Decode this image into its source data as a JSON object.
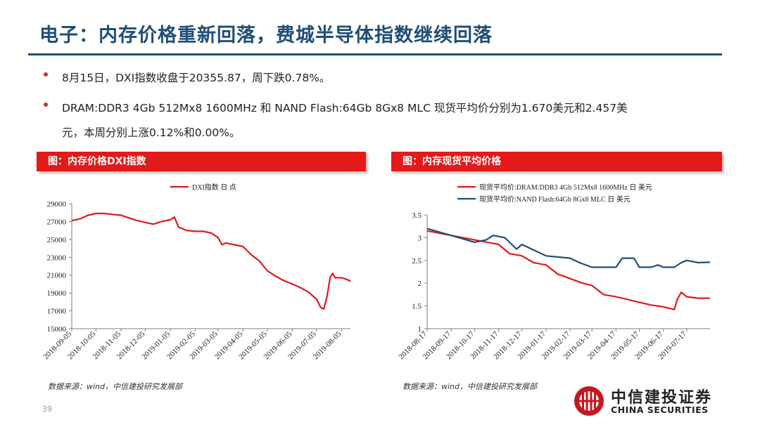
{
  "title": "电子：内存价格重新回落，费城半导体指数继续回落",
  "bullets": [
    "8月15日，DXI指数收盘于20355.87，周下跌0.78%。",
    "DRAM:DDR3 4Gb 512Mx8 1600MHz 和 NAND Flash:64Gb 8Gx8 MLC 现货平均价分别为1.670美元和2.457美"
  ],
  "bullet_continuation": "元，本周分别上涨0.12%和0.00%。",
  "page_number": "39",
  "logo": {
    "cn": "中信建投证券",
    "en": "CHINA SECURITIES"
  },
  "colors": {
    "title": "#1f4e79",
    "banner": "#e21a1a",
    "red_series": "#e21a1a",
    "blue_series": "#1f4e79"
  },
  "chart_data": [
    {
      "type": "line",
      "banner": "图：内存价格DXI指数",
      "source": "数据来源：wind，中信建投研究发展部",
      "ylim": [
        15000,
        29000
      ],
      "yticks": [
        "29000",
        "27000",
        "25000",
        "23000",
        "21000",
        "19000",
        "17000",
        "15000"
      ],
      "xticks": [
        "2018-09-05",
        "2018-10-05",
        "2018-11-05",
        "2018-12-05",
        "2019-01-05",
        "2019-02-05",
        "2019-03-05",
        "2019-04-05",
        "2019-05-05",
        "2019-06-05",
        "2019-07-05",
        "2019-08-05"
      ],
      "x_range": [
        "2018-09-05",
        "2019-08-16"
      ],
      "series": [
        {
          "name": "DXI指数 日 点",
          "color": "#e21a1a",
          "points": [
            [
              "2018-09-05",
              27100
            ],
            [
              "2018-09-15",
              27300
            ],
            [
              "2018-09-25",
              27700
            ],
            [
              "2018-10-05",
              27900
            ],
            [
              "2018-10-15",
              27900
            ],
            [
              "2018-10-25",
              27800
            ],
            [
              "2018-11-05",
              27700
            ],
            [
              "2018-11-15",
              27400
            ],
            [
              "2018-11-25",
              27100
            ],
            [
              "2018-12-05",
              26900
            ],
            [
              "2018-12-15",
              26700
            ],
            [
              "2018-12-25",
              27000
            ],
            [
              "2019-01-05",
              27200
            ],
            [
              "2019-01-10",
              27500
            ],
            [
              "2019-01-15",
              26400
            ],
            [
              "2019-01-25",
              26000
            ],
            [
              "2019-02-05",
              25900
            ],
            [
              "2019-02-15",
              25900
            ],
            [
              "2019-02-25",
              25700
            ],
            [
              "2019-03-05",
              25200
            ],
            [
              "2019-03-10",
              24400
            ],
            [
              "2019-03-15",
              24600
            ],
            [
              "2019-03-25",
              24400
            ],
            [
              "2019-04-05",
              24200
            ],
            [
              "2019-04-15",
              23300
            ],
            [
              "2019-04-25",
              22600
            ],
            [
              "2019-05-05",
              21500
            ],
            [
              "2019-05-15",
              20900
            ],
            [
              "2019-05-25",
              20400
            ],
            [
              "2019-06-05",
              20000
            ],
            [
              "2019-06-15",
              19600
            ],
            [
              "2019-06-25",
              19100
            ],
            [
              "2019-07-05",
              18300
            ],
            [
              "2019-07-10",
              17400
            ],
            [
              "2019-07-14",
              17200
            ],
            [
              "2019-07-18",
              18600
            ],
            [
              "2019-07-22",
              20800
            ],
            [
              "2019-07-25",
              21200
            ],
            [
              "2019-07-28",
              20700
            ],
            [
              "2019-08-05",
              20700
            ],
            [
              "2019-08-12",
              20500
            ],
            [
              "2019-08-16",
              20300
            ]
          ]
        }
      ]
    },
    {
      "type": "line",
      "banner": "图：内存现货平均价格",
      "source": "数据来源：wind，中信建投研究发展部",
      "ylim": [
        1,
        3.5
      ],
      "yticks": [
        "3.5",
        "3",
        "2.5",
        "2",
        "1.5",
        "1"
      ],
      "xticks": [
        "2018-08-17",
        "2018-09-17",
        "2018-10-17",
        "2018-11-17",
        "2018-12-17",
        "2019-01-17",
        "2019-02-17",
        "2019-03-17",
        "2019-04-17",
        "2019-05-17",
        "2019-06-17",
        "2019-07-17"
      ],
      "x_range": [
        "2018-08-17",
        "2019-08-16"
      ],
      "series": [
        {
          "name": "现货平均价:DRAM:DDR3 4Gb 512Mx8 1600MHz 日 美元",
          "color": "#e21a1a",
          "points": [
            [
              "2018-08-17",
              3.15
            ],
            [
              "2018-09-17",
              3.05
            ],
            [
              "2018-10-17",
              2.95
            ],
            [
              "2018-11-17",
              2.85
            ],
            [
              "2018-12-01",
              2.65
            ],
            [
              "2018-12-17",
              2.6
            ],
            [
              "2019-01-01",
              2.45
            ],
            [
              "2019-01-17",
              2.4
            ],
            [
              "2019-02-01",
              2.2
            ],
            [
              "2019-02-17",
              2.1
            ],
            [
              "2019-03-05",
              2.0
            ],
            [
              "2019-03-17",
              1.95
            ],
            [
              "2019-04-01",
              1.75
            ],
            [
              "2019-04-17",
              1.7
            ],
            [
              "2019-05-17",
              1.58
            ],
            [
              "2019-06-01",
              1.52
            ],
            [
              "2019-06-17",
              1.48
            ],
            [
              "2019-07-01",
              1.42
            ],
            [
              "2019-07-05",
              1.65
            ],
            [
              "2019-07-10",
              1.8
            ],
            [
              "2019-07-17",
              1.7
            ],
            [
              "2019-08-01",
              1.67
            ],
            [
              "2019-08-16",
              1.67
            ]
          ]
        },
        {
          "name": "现货平均价:NAND Flash:64Gb 8Gx8 MLC 日 美元",
          "color": "#1f4e79",
          "points": [
            [
              "2018-08-17",
              3.2
            ],
            [
              "2018-09-17",
              3.05
            ],
            [
              "2018-10-17",
              2.9
            ],
            [
              "2018-11-01",
              2.95
            ],
            [
              "2018-11-10",
              3.05
            ],
            [
              "2018-11-25",
              3.0
            ],
            [
              "2018-12-10",
              2.75
            ],
            [
              "2018-12-17",
              2.85
            ],
            [
              "2019-01-17",
              2.6
            ],
            [
              "2019-02-17",
              2.55
            ],
            [
              "2019-03-01",
              2.45
            ],
            [
              "2019-03-17",
              2.35
            ],
            [
              "2019-04-17",
              2.35
            ],
            [
              "2019-04-25",
              2.55
            ],
            [
              "2019-05-10",
              2.55
            ],
            [
              "2019-05-17",
              2.35
            ],
            [
              "2019-06-01",
              2.35
            ],
            [
              "2019-06-10",
              2.4
            ],
            [
              "2019-06-17",
              2.35
            ],
            [
              "2019-07-01",
              2.35
            ],
            [
              "2019-07-10",
              2.45
            ],
            [
              "2019-07-17",
              2.5
            ],
            [
              "2019-08-01",
              2.45
            ],
            [
              "2019-08-16",
              2.46
            ]
          ]
        }
      ]
    }
  ]
}
